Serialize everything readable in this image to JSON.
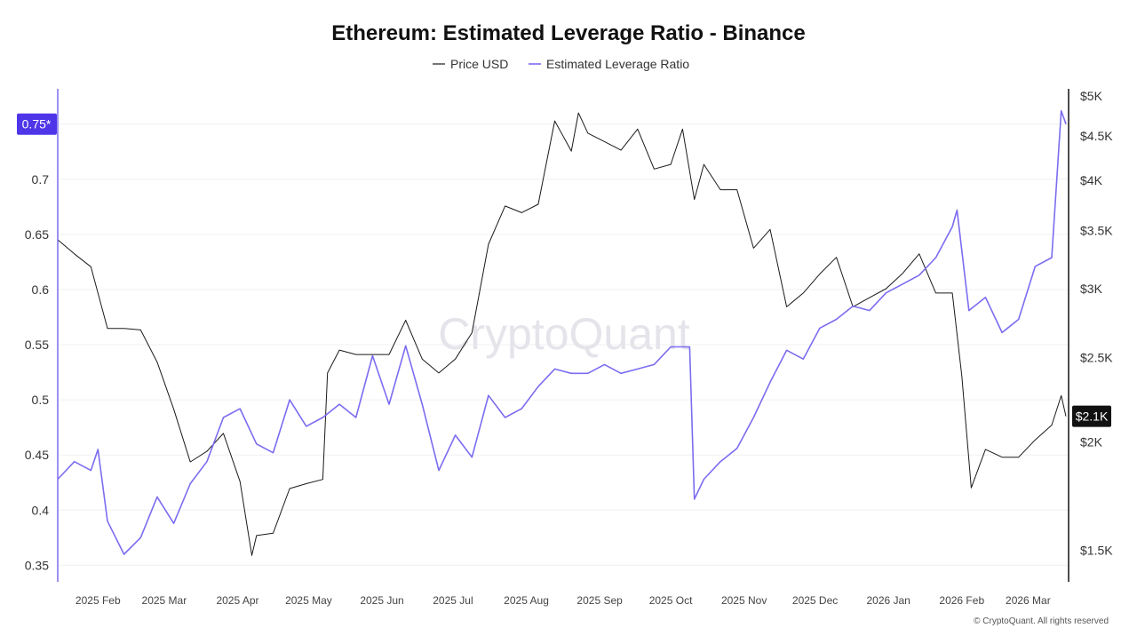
{
  "chart_data": {
    "type": "line",
    "title": "Ethereum: Estimated Leverage Ratio - Binance",
    "legend": {
      "placement": "top-center",
      "entries": [
        "Price USD",
        "Estimated Leverage Ratio"
      ]
    },
    "watermark": "CryptoQuant",
    "copyright": "© CryptoQuant. All rights reserved",
    "grid": true,
    "xlim": [
      "2025-01-15",
      "2026-03-17"
    ],
    "x_ticks": [
      {
        "date": "2025-02-01",
        "label": "2025 Feb"
      },
      {
        "date": "2025-03-01",
        "label": "2025 Mar"
      },
      {
        "date": "2025-04-01",
        "label": "2025 Apr"
      },
      {
        "date": "2025-05-01",
        "label": "2025 May"
      },
      {
        "date": "2025-06-01",
        "label": "2025 Jun"
      },
      {
        "date": "2025-07-01",
        "label": "2025 Jul"
      },
      {
        "date": "2025-08-01",
        "label": "2025 Aug"
      },
      {
        "date": "2025-09-01",
        "label": "2025 Sep"
      },
      {
        "date": "2025-10-01",
        "label": "2025 Oct"
      },
      {
        "date": "2025-11-01",
        "label": "2025 Nov"
      },
      {
        "date": "2025-12-01",
        "label": "2025 Dec"
      },
      {
        "date": "2026-01-01",
        "label": "2026 Jan"
      },
      {
        "date": "2026-02-01",
        "label": "2026 Feb"
      },
      {
        "date": "2026-03-01",
        "label": "2026 Mar"
      }
    ],
    "y_left": {
      "scale": "linear",
      "ylim": [
        0.335,
        0.782
      ],
      "ticks": [
        {
          "value": 0.35,
          "label": "0.35"
        },
        {
          "value": 0.4,
          "label": "0.4"
        },
        {
          "value": 0.45,
          "label": "0.45"
        },
        {
          "value": 0.5,
          "label": "0.5"
        },
        {
          "value": 0.55,
          "label": "0.55"
        },
        {
          "value": 0.6,
          "label": "0.6"
        },
        {
          "value": 0.65,
          "label": "0.65"
        },
        {
          "value": 0.7,
          "label": "0.7"
        }
      ],
      "current_label": "0.75*",
      "current_value": 0.75
    },
    "y_right": {
      "scale": "log",
      "ylim": [
        1380,
        5095
      ],
      "ticks": [
        {
          "value": 1500,
          "label": "$1.5K"
        },
        {
          "value": 2000,
          "label": "$2K"
        },
        {
          "value": 2500,
          "label": "$2.5K"
        },
        {
          "value": 3000,
          "label": "$3K"
        },
        {
          "value": 3500,
          "label": "$3.5K"
        },
        {
          "value": 4000,
          "label": "$4K"
        },
        {
          "value": 4500,
          "label": "$4.5K"
        },
        {
          "value": 5000,
          "label": "$5K"
        }
      ],
      "current_label": "$2.1K",
      "current_value": 2140
    },
    "series": [
      {
        "name": "Price USD",
        "axis": "right",
        "color": "#1a1a1a",
        "points": [
          [
            "2025-01-15",
            3416
          ],
          [
            "2025-01-22",
            3290
          ],
          [
            "2025-01-29",
            3180
          ],
          [
            "2025-02-05",
            2700
          ],
          [
            "2025-02-12",
            2700
          ],
          [
            "2025-02-19",
            2690
          ],
          [
            "2025-02-26",
            2470
          ],
          [
            "2025-03-05",
            2180
          ],
          [
            "2025-03-12",
            1896
          ],
          [
            "2025-03-19",
            1950
          ],
          [
            "2025-03-26",
            2045
          ],
          [
            "2025-04-02",
            1800
          ],
          [
            "2025-04-07",
            1480
          ],
          [
            "2025-04-09",
            1560
          ],
          [
            "2025-04-16",
            1570
          ],
          [
            "2025-04-23",
            1767
          ],
          [
            "2025-04-30",
            1790
          ],
          [
            "2025-05-07",
            1810
          ],
          [
            "2025-05-09",
            2400
          ],
          [
            "2025-05-14",
            2550
          ],
          [
            "2025-05-21",
            2520
          ],
          [
            "2025-05-28",
            2520
          ],
          [
            "2025-06-04",
            2520
          ],
          [
            "2025-06-11",
            2760
          ],
          [
            "2025-06-18",
            2490
          ],
          [
            "2025-06-25",
            2400
          ],
          [
            "2025-07-02",
            2490
          ],
          [
            "2025-07-09",
            2670
          ],
          [
            "2025-07-16",
            3375
          ],
          [
            "2025-07-23",
            3735
          ],
          [
            "2025-07-30",
            3670
          ],
          [
            "2025-08-06",
            3752
          ],
          [
            "2025-08-13",
            4680
          ],
          [
            "2025-08-20",
            4320
          ],
          [
            "2025-08-23",
            4780
          ],
          [
            "2025-08-27",
            4530
          ],
          [
            "2025-09-03",
            4430
          ],
          [
            "2025-09-10",
            4330
          ],
          [
            "2025-09-17",
            4580
          ],
          [
            "2025-09-24",
            4120
          ],
          [
            "2025-10-01",
            4170
          ],
          [
            "2025-10-06",
            4580
          ],
          [
            "2025-10-11",
            3800
          ],
          [
            "2025-10-15",
            4170
          ],
          [
            "2025-10-22",
            3900
          ],
          [
            "2025-10-29",
            3900
          ],
          [
            "2025-11-05",
            3340
          ],
          [
            "2025-11-12",
            3510
          ],
          [
            "2025-11-19",
            2860
          ],
          [
            "2025-11-26",
            2966
          ],
          [
            "2025-12-03",
            3120
          ],
          [
            "2025-12-10",
            3260
          ],
          [
            "2025-12-17",
            2860
          ],
          [
            "2025-12-24",
            2930
          ],
          [
            "2025-12-31",
            3000
          ],
          [
            "2026-01-07",
            3125
          ],
          [
            "2026-01-14",
            3290
          ],
          [
            "2026-01-21",
            2966
          ],
          [
            "2026-01-28",
            2966
          ],
          [
            "2026-02-01",
            2380
          ],
          [
            "2026-02-05",
            1770
          ],
          [
            "2026-02-11",
            1960
          ],
          [
            "2026-02-18",
            1920
          ],
          [
            "2026-02-25",
            1920
          ],
          [
            "2026-03-04",
            2010
          ],
          [
            "2026-03-11",
            2090
          ],
          [
            "2026-03-15",
            2260
          ],
          [
            "2026-03-17",
            2140
          ]
        ]
      },
      {
        "name": "Estimated Leverage Ratio",
        "axis": "left",
        "color": "#7b6cf0",
        "points": [
          [
            "2025-01-15",
            0.428
          ],
          [
            "2025-01-22",
            0.444
          ],
          [
            "2025-01-29",
            0.436
          ],
          [
            "2025-02-01",
            0.455
          ],
          [
            "2025-02-05",
            0.39
          ],
          [
            "2025-02-12",
            0.36
          ],
          [
            "2025-02-19",
            0.375
          ],
          [
            "2025-02-26",
            0.412
          ],
          [
            "2025-03-05",
            0.388
          ],
          [
            "2025-03-12",
            0.424
          ],
          [
            "2025-03-19",
            0.444
          ],
          [
            "2025-03-26",
            0.484
          ],
          [
            "2025-04-02",
            0.492
          ],
          [
            "2025-04-09",
            0.46
          ],
          [
            "2025-04-16",
            0.452
          ],
          [
            "2025-04-23",
            0.5
          ],
          [
            "2025-04-30",
            0.476
          ],
          [
            "2025-05-07",
            0.484
          ],
          [
            "2025-05-14",
            0.496
          ],
          [
            "2025-05-21",
            0.484
          ],
          [
            "2025-05-28",
            0.54
          ],
          [
            "2025-06-04",
            0.496
          ],
          [
            "2025-06-11",
            0.549
          ],
          [
            "2025-06-18",
            0.496
          ],
          [
            "2025-06-25",
            0.436
          ],
          [
            "2025-07-02",
            0.468
          ],
          [
            "2025-07-09",
            0.448
          ],
          [
            "2025-07-16",
            0.504
          ],
          [
            "2025-07-23",
            0.484
          ],
          [
            "2025-07-30",
            0.492
          ],
          [
            "2025-08-06",
            0.512
          ],
          [
            "2025-08-13",
            0.528
          ],
          [
            "2025-08-20",
            0.524
          ],
          [
            "2025-08-27",
            0.524
          ],
          [
            "2025-09-03",
            0.532
          ],
          [
            "2025-09-10",
            0.524
          ],
          [
            "2025-09-17",
            0.528
          ],
          [
            "2025-09-24",
            0.532
          ],
          [
            "2025-10-01",
            0.548
          ],
          [
            "2025-10-09",
            0.548
          ],
          [
            "2025-10-11",
            0.41
          ],
          [
            "2025-10-15",
            0.428
          ],
          [
            "2025-10-22",
            0.444
          ],
          [
            "2025-10-29",
            0.456
          ],
          [
            "2025-11-05",
            0.484
          ],
          [
            "2025-11-12",
            0.516
          ],
          [
            "2025-11-19",
            0.545
          ],
          [
            "2025-11-26",
            0.537
          ],
          [
            "2025-12-03",
            0.565
          ],
          [
            "2025-12-10",
            0.573
          ],
          [
            "2025-12-17",
            0.585
          ],
          [
            "2025-12-24",
            0.581
          ],
          [
            "2025-12-31",
            0.597
          ],
          [
            "2026-01-07",
            0.605
          ],
          [
            "2026-01-14",
            0.613
          ],
          [
            "2026-01-21",
            0.629
          ],
          [
            "2026-01-28",
            0.657
          ],
          [
            "2026-01-30",
            0.672
          ],
          [
            "2026-02-04",
            0.581
          ],
          [
            "2026-02-11",
            0.593
          ],
          [
            "2026-02-18",
            0.561
          ],
          [
            "2026-02-25",
            0.573
          ],
          [
            "2026-03-04",
            0.621
          ],
          [
            "2026-03-11",
            0.629
          ],
          [
            "2026-03-15",
            0.762
          ],
          [
            "2026-03-17",
            0.75
          ]
        ]
      }
    ]
  }
}
